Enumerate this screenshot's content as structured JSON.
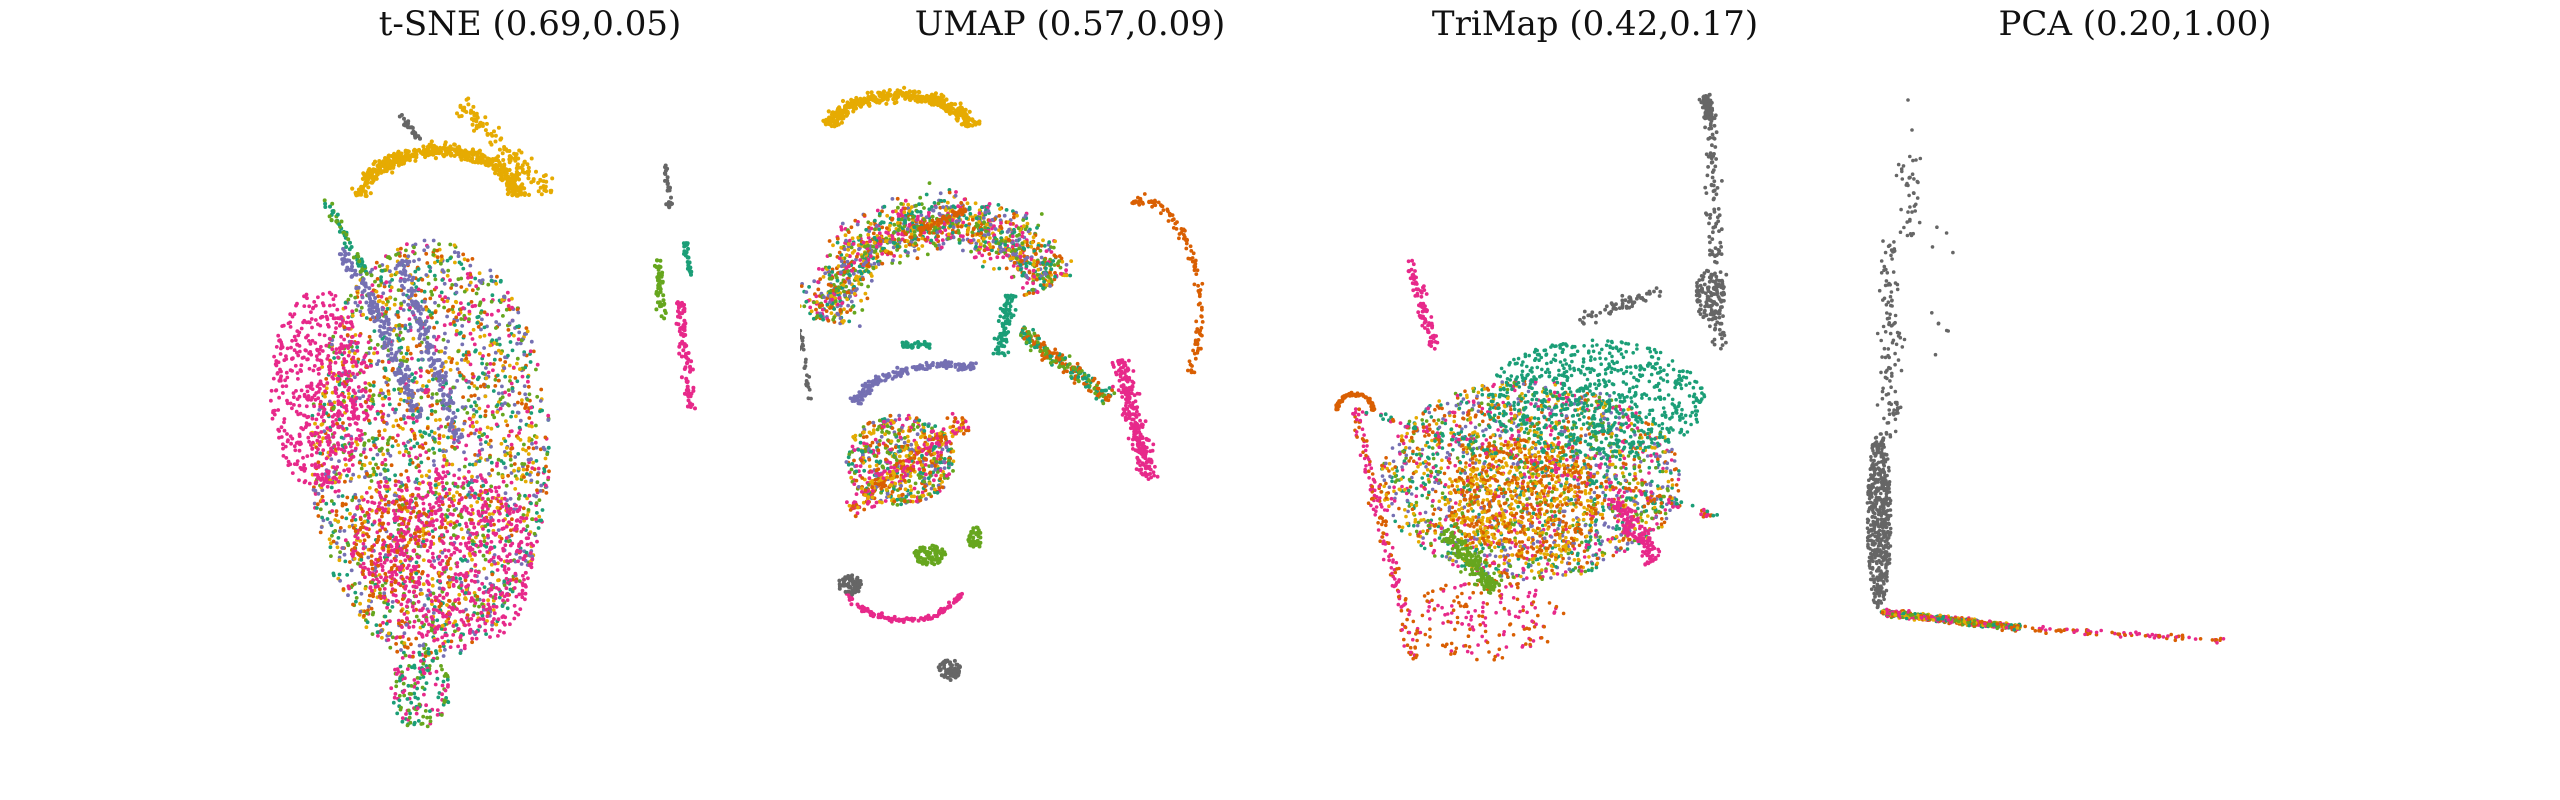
{
  "figure": {
    "panels": [
      {
        "title": "t-SNE (0.69,0.05)"
      },
      {
        "title": "UMAP (0.57,0.09)"
      },
      {
        "title": "TriMap (0.42,0.17)"
      },
      {
        "title": "PCA (0.20,1.00)"
      }
    ]
  },
  "colors": {
    "teal": "#1b9e77",
    "orange": "#d95f02",
    "purple": "#7570b3",
    "pink": "#e7298a",
    "green": "#66a61e",
    "gold": "#e6ab02",
    "gray": "#666666"
  },
  "chart_data": [
    {
      "type": "scatter",
      "title": "t-SNE (0.69,0.05)",
      "xlabel": "",
      "ylabel": "",
      "axes": "off",
      "grid": false,
      "legend": "none",
      "series_colors": [
        "#1b9e77",
        "#d95f02",
        "#7570b3",
        "#e7298a",
        "#66a61e",
        "#e6ab02",
        "#666666"
      ]
    },
    {
      "type": "scatter",
      "title": "UMAP (0.57,0.09)",
      "xlabel": "",
      "ylabel": "",
      "axes": "off",
      "grid": false,
      "legend": "none",
      "series_colors": [
        "#1b9e77",
        "#d95f02",
        "#7570b3",
        "#e7298a",
        "#66a61e",
        "#e6ab02",
        "#666666"
      ]
    },
    {
      "type": "scatter",
      "title": "TriMap (0.42,0.17)",
      "xlabel": "",
      "ylabel": "",
      "axes": "off",
      "grid": false,
      "legend": "none",
      "series_colors": [
        "#1b9e77",
        "#d95f02",
        "#7570b3",
        "#e7298a",
        "#66a61e",
        "#e6ab02",
        "#666666"
      ]
    },
    {
      "type": "scatter",
      "title": "PCA (0.20,1.00)",
      "xlabel": "",
      "ylabel": "",
      "axes": "off",
      "grid": false,
      "legend": "none",
      "series_colors": [
        "#1b9e77",
        "#d95f02",
        "#7570b3",
        "#e7298a",
        "#66a61e",
        "#e6ab02",
        "#666666"
      ]
    }
  ]
}
